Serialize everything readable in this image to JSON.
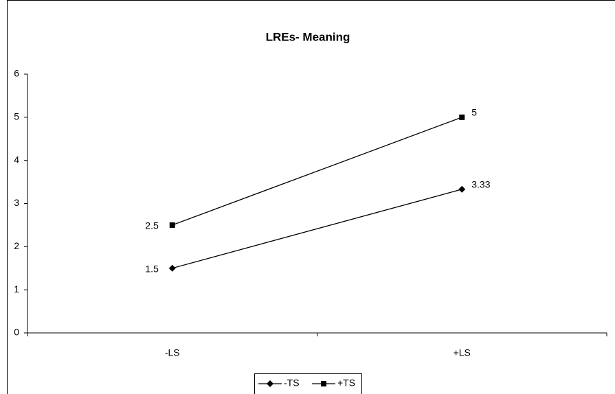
{
  "chart_data": {
    "type": "line",
    "title": "LREs- Meaning",
    "categories": [
      "-LS",
      "+LS"
    ],
    "series": [
      {
        "name": "-TS",
        "color": "#000000",
        "marker": "diamond",
        "values": [
          1.5,
          3.33
        ]
      },
      {
        "name": "+TS",
        "color": "#000000",
        "marker": "square",
        "values": [
          2.5,
          5
        ]
      }
    ],
    "ylim": [
      0,
      6
    ],
    "yticks": [
      0,
      1,
      2,
      3,
      4,
      5,
      6
    ],
    "grid": false,
    "legend": "bottom"
  }
}
